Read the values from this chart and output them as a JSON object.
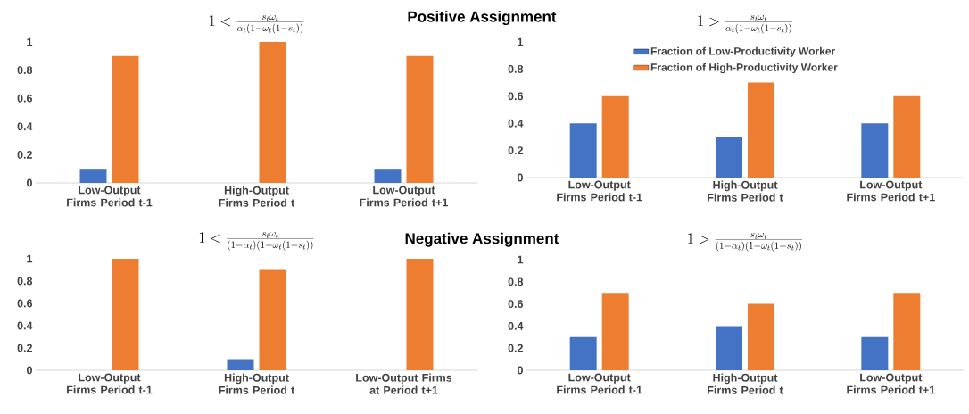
{
  "chart_data": [
    {
      "type": "bar",
      "title": "1 < \\frac{s_t\\omega_t}{\\alpha_t(1-\\omega_t(1-s_t))}",
      "annotations": [
        "Positive Assignment"
      ],
      "categories": [
        "Low-Output Firms Period t-1",
        "High-Output Firms Period t",
        "Low-Output Firms Period t+1"
      ],
      "ylim": [
        0,
        1
      ],
      "yticks": [
        0,
        0.2,
        0.4,
        0.6,
        0.8,
        1
      ],
      "grid": false,
      "series": [
        {
          "color": "#4472c4",
          "values": [
            0.1,
            0,
            0.1
          ]
        },
        {
          "color": "#ed7d31",
          "values": [
            0.9,
            1,
            0.9
          ]
        }
      ]
    },
    {
      "type": "bar",
      "title": "1 > \\frac{s_t\\omega_t}{\\alpha_t(1-\\omega_t(1-s_t))}",
      "categories": [
        "Low-Output Firms Period t-1",
        "High-Output Firms Period t",
        "Low-Output Firms Period t+1"
      ],
      "ylim": [
        0,
        1
      ],
      "yticks": [
        0,
        0.2,
        0.4,
        0.6,
        0.8,
        1
      ],
      "grid": false,
      "legend": "top",
      "series": [
        {
          "name": "Fraction of Low-Productivity Worker",
          "color": "#4472c4",
          "values": [
            0.4,
            0.3,
            0.4
          ]
        },
        {
          "name": "Fraction of High-Productivity Worker",
          "color": "#ed7d31",
          "values": [
            0.6,
            0.7,
            0.6
          ]
        }
      ]
    },
    {
      "type": "bar",
      "title": "1 < \\frac{s_t\\omega_t}{(1-\\alpha_t)(1-\\omega_t(1-s_t))}",
      "annotations": [
        "Negative Assignment"
      ],
      "categories": [
        "Low-Output Firms Period t-1",
        "High-Output Firms Period t",
        "Low-Output Firms at Period t+1"
      ],
      "ylim": [
        0,
        1
      ],
      "yticks": [
        0,
        0.2,
        0.4,
        0.6,
        0.8,
        1
      ],
      "grid": false,
      "series": [
        {
          "color": "#4472c4",
          "values": [
            0,
            0.1,
            0
          ]
        },
        {
          "color": "#ed7d31",
          "values": [
            1,
            0.9,
            1
          ]
        }
      ]
    },
    {
      "type": "bar",
      "title": "1 > \\frac{s_t\\omega_t}{(1-\\alpha_t)(1-\\omega_t(1-s_t))}",
      "categories": [
        "Low-Output Firms Period t-1",
        "High-Output Firms Period t",
        "Low-Output Firms Period t+1"
      ],
      "ylim": [
        0,
        1
      ],
      "yticks": [
        0,
        0.2,
        0.4,
        0.6,
        0.8,
        1
      ],
      "grid": false,
      "series": [
        {
          "color": "#4472c4",
          "values": [
            0.3,
            0.4,
            0.3
          ]
        },
        {
          "color": "#ed7d31",
          "values": [
            0.7,
            0.6,
            0.7
          ]
        }
      ]
    }
  ]
}
